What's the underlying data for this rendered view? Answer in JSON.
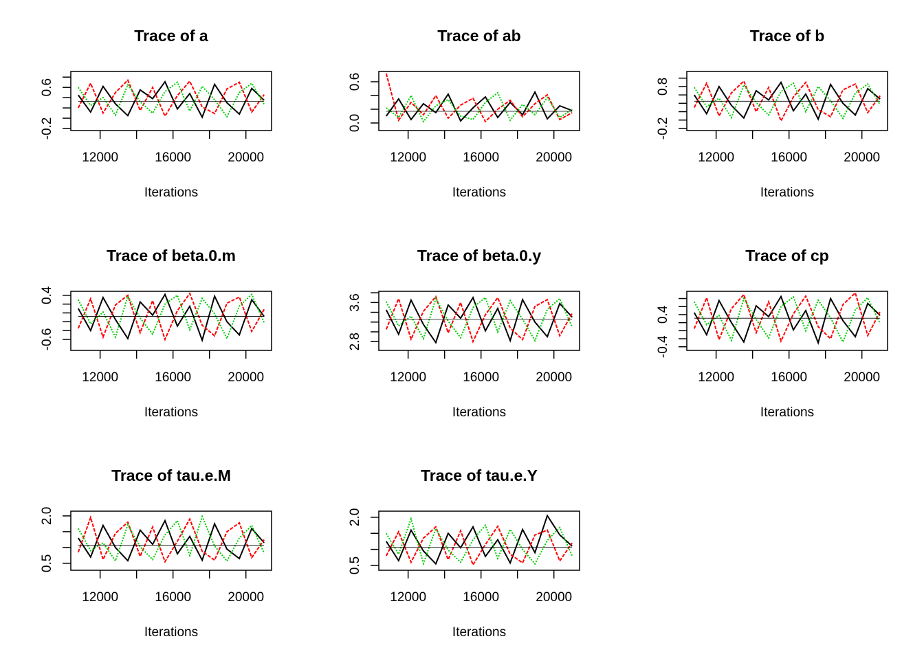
{
  "chart_data": [
    {
      "type": "line",
      "title": "Trace of a",
      "xlabel": "Iterations",
      "x": [
        10800,
        11480,
        12160,
        12840,
        13520,
        14200,
        14880,
        15560,
        16240,
        16920,
        17600,
        18280,
        18960,
        19640,
        20320,
        21000
      ],
      "series": [
        {
          "color": "#000000",
          "dash": "none",
          "values": [
            0.45,
            0.12,
            0.62,
            0.28,
            0.05,
            0.55,
            0.38,
            0.71,
            0.18,
            0.48,
            0.02,
            0.66,
            0.3,
            0.08,
            0.58,
            0.35
          ]
        },
        {
          "color": "#ff0000",
          "dash": "5 2",
          "values": [
            0.2,
            0.68,
            0.1,
            0.5,
            0.74,
            0.15,
            0.6,
            0.04,
            0.44,
            0.72,
            0.22,
            0.09,
            0.57,
            0.7,
            0.12,
            0.46
          ]
        },
        {
          "color": "#00cd00",
          "dash": "2 2",
          "values": [
            0.6,
            0.25,
            0.4,
            0.06,
            0.65,
            0.32,
            0.1,
            0.52,
            0.7,
            0.14,
            0.62,
            0.36,
            0.03,
            0.5,
            0.68,
            0.27
          ]
        }
      ],
      "smooth": 0.33,
      "xlim": [
        10392,
        21408
      ],
      "xticks": [
        12000,
        16000,
        20000
      ],
      "xticks_unlabeled": [
        14000,
        18000
      ],
      "ylim": [
        -0.24,
        0.91
      ],
      "yticks": [
        -0.2,
        0.6
      ],
      "yticks_unlabeled": [
        0.0,
        0.2,
        0.4,
        0.8
      ]
    },
    {
      "type": "line",
      "title": "Trace of ab",
      "xlabel": "Iterations",
      "x": [
        10800,
        11480,
        12160,
        12840,
        13520,
        14200,
        14880,
        15560,
        16240,
        16920,
        17600,
        18280,
        18960,
        19640,
        20320,
        21000
      ],
      "series": [
        {
          "color": "#000000",
          "dash": "none",
          "values": [
            0.1,
            0.35,
            0.05,
            0.28,
            0.15,
            0.42,
            0.03,
            0.22,
            0.38,
            0.08,
            0.3,
            0.12,
            0.45,
            0.06,
            0.25,
            0.18
          ]
        },
        {
          "color": "#ff0000",
          "dash": "5 2",
          "values": [
            0.72,
            0.04,
            0.3,
            0.12,
            0.4,
            0.07,
            0.26,
            0.36,
            0.02,
            0.2,
            0.33,
            0.09,
            0.28,
            0.41,
            0.05,
            0.15
          ]
        },
        {
          "color": "#00cd00",
          "dash": "2 2",
          "values": [
            0.22,
            0.08,
            0.4,
            0.02,
            0.25,
            0.34,
            0.1,
            0.05,
            0.3,
            0.44,
            0.04,
            0.27,
            0.12,
            0.37,
            0.08,
            0.2
          ]
        }
      ],
      "smooth": 0.17,
      "xlim": [
        10392,
        21408
      ],
      "xticks": [
        12000,
        16000,
        20000
      ],
      "xticks_unlabeled": [
        14000,
        18000
      ],
      "ylim": [
        -0.11,
        0.75
      ],
      "yticks": [
        {
          "value": 0,
          "label": "0.0"
        },
        0.6
      ],
      "yticks_unlabeled": [
        0.2,
        0.4
      ]
    },
    {
      "type": "line",
      "title": "Trace of b",
      "xlabel": "Iterations",
      "x": [
        10800,
        11480,
        12160,
        12840,
        13520,
        14200,
        14880,
        15560,
        16240,
        16920,
        17600,
        18280,
        18960,
        19640,
        20320,
        21000
      ],
      "series": [
        {
          "color": "#000000",
          "dash": "none",
          "values": [
            0.6,
            0.15,
            0.8,
            0.35,
            0.05,
            0.7,
            0.48,
            0.9,
            0.22,
            0.62,
            0.02,
            0.85,
            0.4,
            0.12,
            0.75,
            0.5
          ]
        },
        {
          "color": "#ff0000",
          "dash": "5 2",
          "values": [
            0.3,
            0.88,
            0.1,
            0.65,
            0.93,
            0.2,
            0.78,
            -0.02,
            0.55,
            0.9,
            0.25,
            0.08,
            0.72,
            0.86,
            0.18,
            0.58
          ]
        },
        {
          "color": "#00cd00",
          "dash": "2 2",
          "values": [
            0.78,
            0.32,
            0.52,
            0.06,
            0.84,
            0.42,
            0.12,
            0.68,
            0.88,
            0.2,
            0.8,
            0.46,
            0.04,
            0.64,
            0.86,
            0.36
          ]
        }
      ],
      "smooth": 0.45,
      "xlim": [
        10392,
        21408
      ],
      "xticks": [
        12000,
        16000,
        20000
      ],
      "xticks_unlabeled": [
        14000,
        18000
      ],
      "ylim": [
        -0.25,
        1.16
      ],
      "yticks": [
        -0.2,
        0.8
      ],
      "yticks_unlabeled": [
        0.0,
        0.2,
        0.4,
        0.6,
        1.0
      ]
    },
    {
      "type": "line",
      "title": "Trace of beta.0.m",
      "xlabel": "Iterations",
      "x": [
        10800,
        11480,
        12160,
        12840,
        13520,
        14200,
        14880,
        15560,
        16240,
        16920,
        17600,
        18280,
        18960,
        19640,
        20320,
        21000
      ],
      "series": [
        {
          "color": "#000000",
          "dash": "none",
          "values": [
            0.1,
            -0.4,
            0.35,
            -0.15,
            -0.58,
            0.25,
            -0.05,
            0.42,
            -0.3,
            0.15,
            -0.62,
            0.38,
            -0.2,
            -0.5,
            0.3,
            -0.08
          ]
        },
        {
          "color": "#ff0000",
          "dash": "5 2",
          "values": [
            -0.35,
            0.32,
            -0.55,
            0.18,
            0.4,
            -0.45,
            0.28,
            -0.6,
            0.05,
            0.44,
            -0.28,
            -0.52,
            0.22,
            0.36,
            -0.42,
            0.08
          ]
        },
        {
          "color": "#00cd00",
          "dash": "2 2",
          "values": [
            0.3,
            -0.25,
            0.02,
            -0.55,
            0.38,
            -0.12,
            -0.48,
            0.2,
            0.4,
            -0.38,
            0.33,
            -0.02,
            -0.58,
            0.15,
            0.42,
            -0.22
          ]
        }
      ],
      "smooth": -0.08,
      "xlim": [
        10392,
        21408
      ],
      "xticks": [
        12000,
        16000,
        20000
      ],
      "xticks_unlabeled": [
        14000,
        18000
      ],
      "ylim": [
        -0.85,
        0.49
      ],
      "yticks": [
        -0.6,
        0.4
      ],
      "yticks_unlabeled": [
        -0.4,
        -0.2,
        0.0,
        0.2
      ]
    },
    {
      "type": "line",
      "title": "Trace of beta.0.y",
      "xlabel": "Iterations",
      "x": [
        10800,
        11480,
        12160,
        12840,
        13520,
        14200,
        14880,
        15560,
        16240,
        16920,
        17600,
        18280,
        18960,
        19640,
        20320,
        21000
      ],
      "series": [
        {
          "color": "#000000",
          "dash": "none",
          "values": [
            3.45,
            2.95,
            3.65,
            3.15,
            2.78,
            3.55,
            3.28,
            3.7,
            3.02,
            3.48,
            2.82,
            3.66,
            3.2,
            2.9,
            3.58,
            3.3
          ]
        },
        {
          "color": "#ff0000",
          "dash": "5 2",
          "values": [
            3.05,
            3.68,
            2.85,
            3.42,
            3.72,
            2.98,
            3.6,
            2.8,
            3.35,
            3.7,
            3.08,
            2.84,
            3.52,
            3.66,
            2.92,
            3.38
          ]
        },
        {
          "color": "#00cd00",
          "dash": "2 2",
          "values": [
            3.62,
            3.12,
            3.32,
            2.86,
            3.68,
            3.22,
            2.88,
            3.5,
            3.7,
            3.0,
            3.64,
            3.26,
            2.82,
            3.46,
            3.68,
            3.1
          ]
        }
      ],
      "smooth": 3.26,
      "xlim": [
        10392,
        21408
      ],
      "xticks": [
        12000,
        16000,
        20000
      ],
      "xticks_unlabeled": [
        14000,
        18000
      ],
      "ylim": [
        2.62,
        3.83
      ],
      "yticks": [
        2.8,
        3.6
      ],
      "yticks_unlabeled": [
        3.0,
        3.2,
        3.4,
        3.8
      ]
    },
    {
      "type": "line",
      "title": "Trace of cp",
      "xlabel": "Iterations",
      "x": [
        10800,
        11480,
        12160,
        12840,
        13520,
        14200,
        14880,
        15560,
        16240,
        16920,
        17600,
        18280,
        18960,
        19640,
        20320,
        21000
      ],
      "series": [
        {
          "color": "#000000",
          "dash": "none",
          "values": [
            0.45,
            -0.1,
            0.75,
            0.2,
            -0.28,
            0.62,
            0.35,
            0.85,
            0.02,
            0.5,
            -0.3,
            0.8,
            0.25,
            -0.15,
            0.68,
            0.38
          ]
        },
        {
          "color": "#ff0000",
          "dash": "5 2",
          "values": [
            0.05,
            0.82,
            -0.22,
            0.55,
            0.9,
            -0.05,
            0.72,
            -0.26,
            0.42,
            0.86,
            0.1,
            -0.2,
            0.65,
            0.94,
            -0.12,
            0.48
          ]
        },
        {
          "color": "#00cd00",
          "dash": "2 2",
          "values": [
            0.72,
            0.15,
            0.38,
            -0.24,
            0.8,
            0.28,
            -0.18,
            0.6,
            0.84,
            0.0,
            0.76,
            0.32,
            -0.28,
            0.52,
            0.82,
            0.18
          ]
        }
      ],
      "smooth": 0.31,
      "xlim": [
        10392,
        21408
      ],
      "xticks": [
        12000,
        16000,
        20000
      ],
      "xticks_unlabeled": [
        14000,
        18000
      ],
      "ylim": [
        -0.49,
        0.98
      ],
      "yticks": [
        -0.4,
        0.4
      ],
      "yticks_unlabeled": [
        -0.2,
        0.0,
        0.2,
        0.6,
        0.8
      ]
    },
    {
      "type": "line",
      "title": "Trace of tau.e.M",
      "xlabel": "Iterations",
      "x": [
        10800,
        11480,
        12160,
        12840,
        13520,
        14200,
        14880,
        15560,
        16240,
        16920,
        17600,
        18280,
        18960,
        19640,
        20320,
        21000
      ],
      "series": [
        {
          "color": "#000000",
          "dash": "none",
          "values": [
            1.3,
            0.7,
            1.7,
            1.0,
            0.58,
            1.55,
            1.1,
            1.85,
            0.8,
            1.35,
            0.6,
            1.75,
            0.95,
            0.65,
            1.6,
            1.15
          ]
        },
        {
          "color": "#ff0000",
          "dash": "5 2",
          "values": [
            0.85,
            1.95,
            0.62,
            1.45,
            1.8,
            0.72,
            1.65,
            0.55,
            1.2,
            1.9,
            0.88,
            0.6,
            1.5,
            1.78,
            0.68,
            1.25
          ]
        },
        {
          "color": "#00cd00",
          "dash": "2 2",
          "values": [
            1.6,
            0.9,
            1.15,
            0.58,
            1.72,
            1.02,
            0.62,
            1.4,
            1.85,
            0.75,
            1.98,
            1.05,
            0.57,
            1.3,
            1.7,
            0.82
          ]
        }
      ],
      "smooth": 1.07,
      "xlim": [
        10392,
        21408
      ],
      "xticks": [
        12000,
        16000,
        20000
      ],
      "xticks_unlabeled": [
        14000,
        18000
      ],
      "ylim": [
        0.28,
        2.15
      ],
      "yticks": [
        0.5,
        {
          "value": 2,
          "label": "2.0"
        }
      ],
      "yticks_unlabeled": [
        1.0,
        1.5
      ]
    },
    {
      "type": "line",
      "title": "Trace of tau.e.Y",
      "xlabel": "Iterations",
      "x": [
        10800,
        11480,
        12160,
        12840,
        13520,
        14200,
        14880,
        15560,
        16240,
        16920,
        17600,
        18280,
        18960,
        19640,
        20320,
        21000
      ],
      "series": [
        {
          "color": "#000000",
          "dash": "none",
          "values": [
            1.25,
            0.65,
            1.6,
            0.95,
            0.55,
            1.5,
            1.05,
            1.7,
            0.78,
            1.3,
            0.58,
            1.62,
            0.9,
            2.05,
            1.45,
            1.1
          ]
        },
        {
          "color": "#ff0000",
          "dash": "5 2",
          "values": [
            0.8,
            1.55,
            0.6,
            1.35,
            1.7,
            0.68,
            1.58,
            0.52,
            1.15,
            1.72,
            0.85,
            0.58,
            1.45,
            1.6,
            0.64,
            1.2
          ]
        },
        {
          "color": "#00cd00",
          "dash": "2 2",
          "values": [
            1.5,
            0.85,
            1.95,
            0.56,
            1.65,
            0.98,
            0.6,
            1.3,
            1.75,
            0.72,
            1.62,
            1.0,
            0.55,
            1.28,
            1.68,
            0.8
          ]
        }
      ],
      "smooth": 1.07,
      "xlim": [
        10392,
        21408
      ],
      "xticks": [
        12000,
        16000,
        20000
      ],
      "xticks_unlabeled": [
        14000,
        18000
      ],
      "ylim": [
        0.35,
        2.19
      ],
      "yticks": [
        0.5,
        {
          "value": 2,
          "label": "2.0"
        }
      ],
      "yticks_unlabeled": [
        1.0,
        1.5
      ]
    }
  ]
}
